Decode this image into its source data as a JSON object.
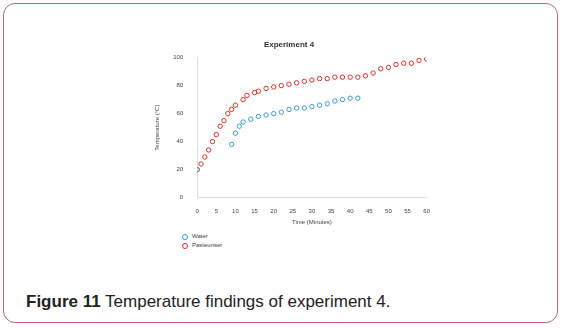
{
  "chart_data": {
    "type": "scatter",
    "title": "Experiment 4",
    "x_label": "Time (Minutes)",
    "y_label": "Temperature (°C)",
    "xlim": [
      0,
      60
    ],
    "xticks": [
      0,
      5,
      10,
      15,
      20,
      25,
      30,
      35,
      40,
      45,
      50,
      55,
      60
    ],
    "ylim": [
      0,
      100
    ],
    "yticks": [
      0,
      20,
      40,
      60,
      80,
      100
    ],
    "grid": false,
    "legend": "lower left",
    "marker": "circle",
    "series": [
      {
        "name": "Water",
        "color": "#3a9be0",
        "x": [
          0,
          9,
          10,
          11,
          12,
          14,
          16,
          18,
          20,
          22,
          24,
          26,
          28,
          30,
          32,
          34,
          36,
          38,
          40,
          42
        ],
        "values": [
          20,
          38,
          46,
          51,
          54,
          56,
          58,
          59,
          60,
          61,
          63,
          64,
          64,
          65,
          66,
          67,
          69,
          70,
          71,
          71
        ]
      },
      {
        "name": "Pasteuriser",
        "color": "#e0302a",
        "x": [
          0,
          1,
          2,
          3,
          4,
          5,
          6,
          7,
          8,
          9,
          10,
          12,
          13,
          15,
          16,
          18,
          20,
          22,
          24,
          26,
          28,
          30,
          32,
          34,
          36,
          38,
          40,
          42,
          44,
          46,
          48,
          50,
          52,
          54,
          56,
          58,
          60
        ],
        "values": [
          20,
          24,
          29,
          34,
          40,
          45,
          51,
          55,
          60,
          63,
          66,
          70,
          73,
          75,
          76,
          78,
          79,
          80,
          81,
          82,
          83,
          84,
          85,
          85,
          86,
          86,
          86,
          86,
          87,
          89,
          92,
          93,
          95,
          96,
          96,
          98,
          99
        ]
      }
    ]
  },
  "caption": {
    "label": "Figure 11",
    "text": "Temperature findings of experiment 4."
  }
}
